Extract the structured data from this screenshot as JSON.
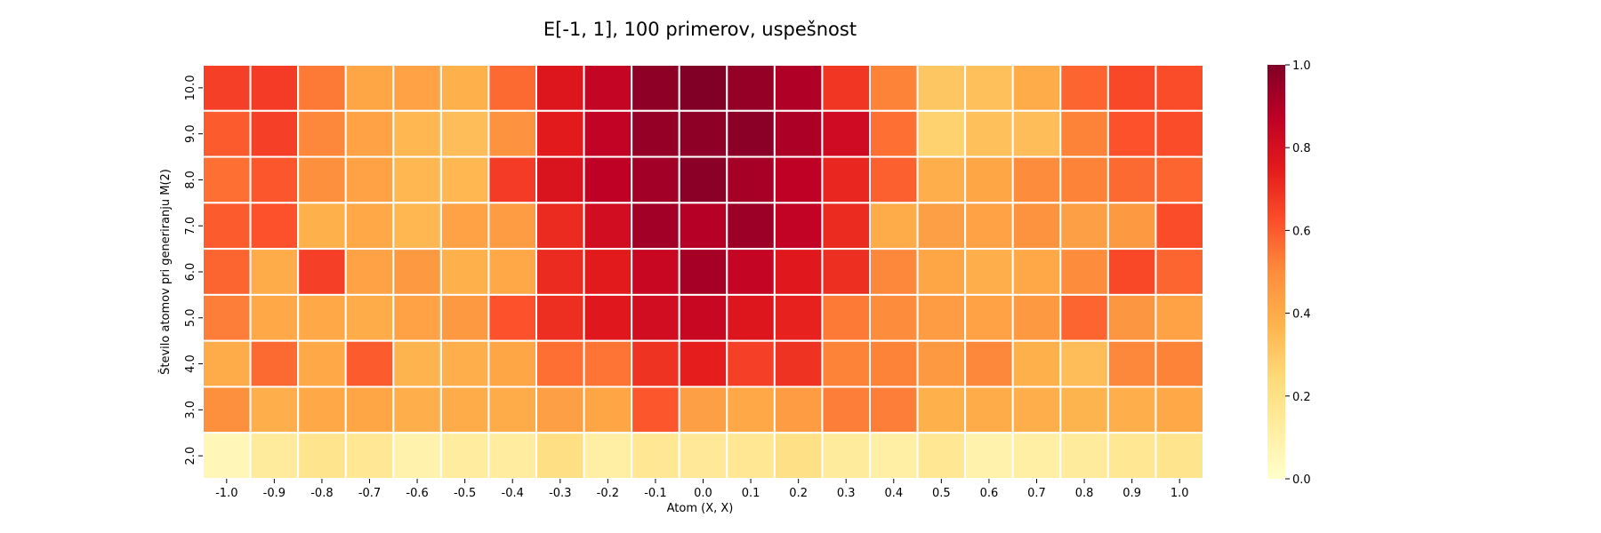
{
  "chart_data": {
    "type": "heatmap",
    "title": "E[-1, 1], 100 primerov, uspešnost",
    "xlabel": "Atom (X, X)",
    "ylabel": "Število atomov pri generiranju M(2)",
    "x_categories": [
      "-1.0",
      "-0.9",
      "-0.8",
      "-0.7",
      "-0.6",
      "-0.5",
      "-0.4",
      "-0.3",
      "-0.2",
      "-0.1",
      "0.0",
      "0.1",
      "0.2",
      "0.3",
      "0.4",
      "0.5",
      "0.6",
      "0.7",
      "0.8",
      "0.9",
      "1.0"
    ],
    "y_categories": [
      "10.0",
      "9.0",
      "8.0",
      "7.0",
      "6.0",
      "5.0",
      "4.0",
      "3.0",
      "2.0"
    ],
    "values": [
      [
        0.66,
        0.67,
        0.54,
        0.42,
        0.43,
        0.38,
        0.57,
        0.77,
        0.85,
        0.97,
        1.0,
        0.96,
        0.9,
        0.68,
        0.52,
        0.31,
        0.33,
        0.4,
        0.58,
        0.64,
        0.63
      ],
      [
        0.6,
        0.66,
        0.51,
        0.43,
        0.36,
        0.34,
        0.48,
        0.75,
        0.86,
        0.96,
        0.97,
        0.98,
        0.91,
        0.82,
        0.56,
        0.27,
        0.33,
        0.34,
        0.52,
        0.62,
        0.63
      ],
      [
        0.56,
        0.61,
        0.49,
        0.43,
        0.36,
        0.36,
        0.67,
        0.78,
        0.87,
        0.93,
        0.98,
        0.92,
        0.87,
        0.72,
        0.59,
        0.39,
        0.42,
        0.5,
        0.52,
        0.57,
        0.58
      ],
      [
        0.6,
        0.62,
        0.38,
        0.41,
        0.36,
        0.43,
        0.45,
        0.71,
        0.81,
        0.93,
        0.89,
        0.94,
        0.86,
        0.71,
        0.4,
        0.44,
        0.43,
        0.48,
        0.44,
        0.46,
        0.63
      ],
      [
        0.58,
        0.4,
        0.66,
        0.43,
        0.46,
        0.38,
        0.41,
        0.71,
        0.75,
        0.84,
        0.92,
        0.85,
        0.76,
        0.7,
        0.51,
        0.42,
        0.39,
        0.41,
        0.5,
        0.64,
        0.58
      ],
      [
        0.53,
        0.41,
        0.41,
        0.4,
        0.43,
        0.46,
        0.62,
        0.7,
        0.76,
        0.81,
        0.84,
        0.77,
        0.73,
        0.54,
        0.5,
        0.45,
        0.43,
        0.46,
        0.58,
        0.47,
        0.43
      ],
      [
        0.4,
        0.57,
        0.41,
        0.6,
        0.37,
        0.39,
        0.42,
        0.56,
        0.55,
        0.69,
        0.74,
        0.66,
        0.69,
        0.52,
        0.52,
        0.46,
        0.51,
        0.38,
        0.34,
        0.51,
        0.52
      ],
      [
        0.49,
        0.39,
        0.41,
        0.42,
        0.39,
        0.4,
        0.4,
        0.44,
        0.42,
        0.61,
        0.44,
        0.41,
        0.45,
        0.53,
        0.53,
        0.38,
        0.4,
        0.39,
        0.37,
        0.39,
        0.41
      ],
      [
        0.06,
        0.14,
        0.18,
        0.16,
        0.09,
        0.13,
        0.13,
        0.21,
        0.11,
        0.16,
        0.15,
        0.16,
        0.2,
        0.14,
        0.11,
        0.16,
        0.09,
        0.11,
        0.14,
        0.16,
        0.18
      ]
    ],
    "colorbar": {
      "colormap": "YlOrRd",
      "min": 0.0,
      "max": 1.0,
      "ticks": [
        "0.0",
        "0.2",
        "0.4",
        "0.6",
        "0.8",
        "1.0"
      ]
    },
    "grid": false,
    "cell_borders": "white"
  }
}
